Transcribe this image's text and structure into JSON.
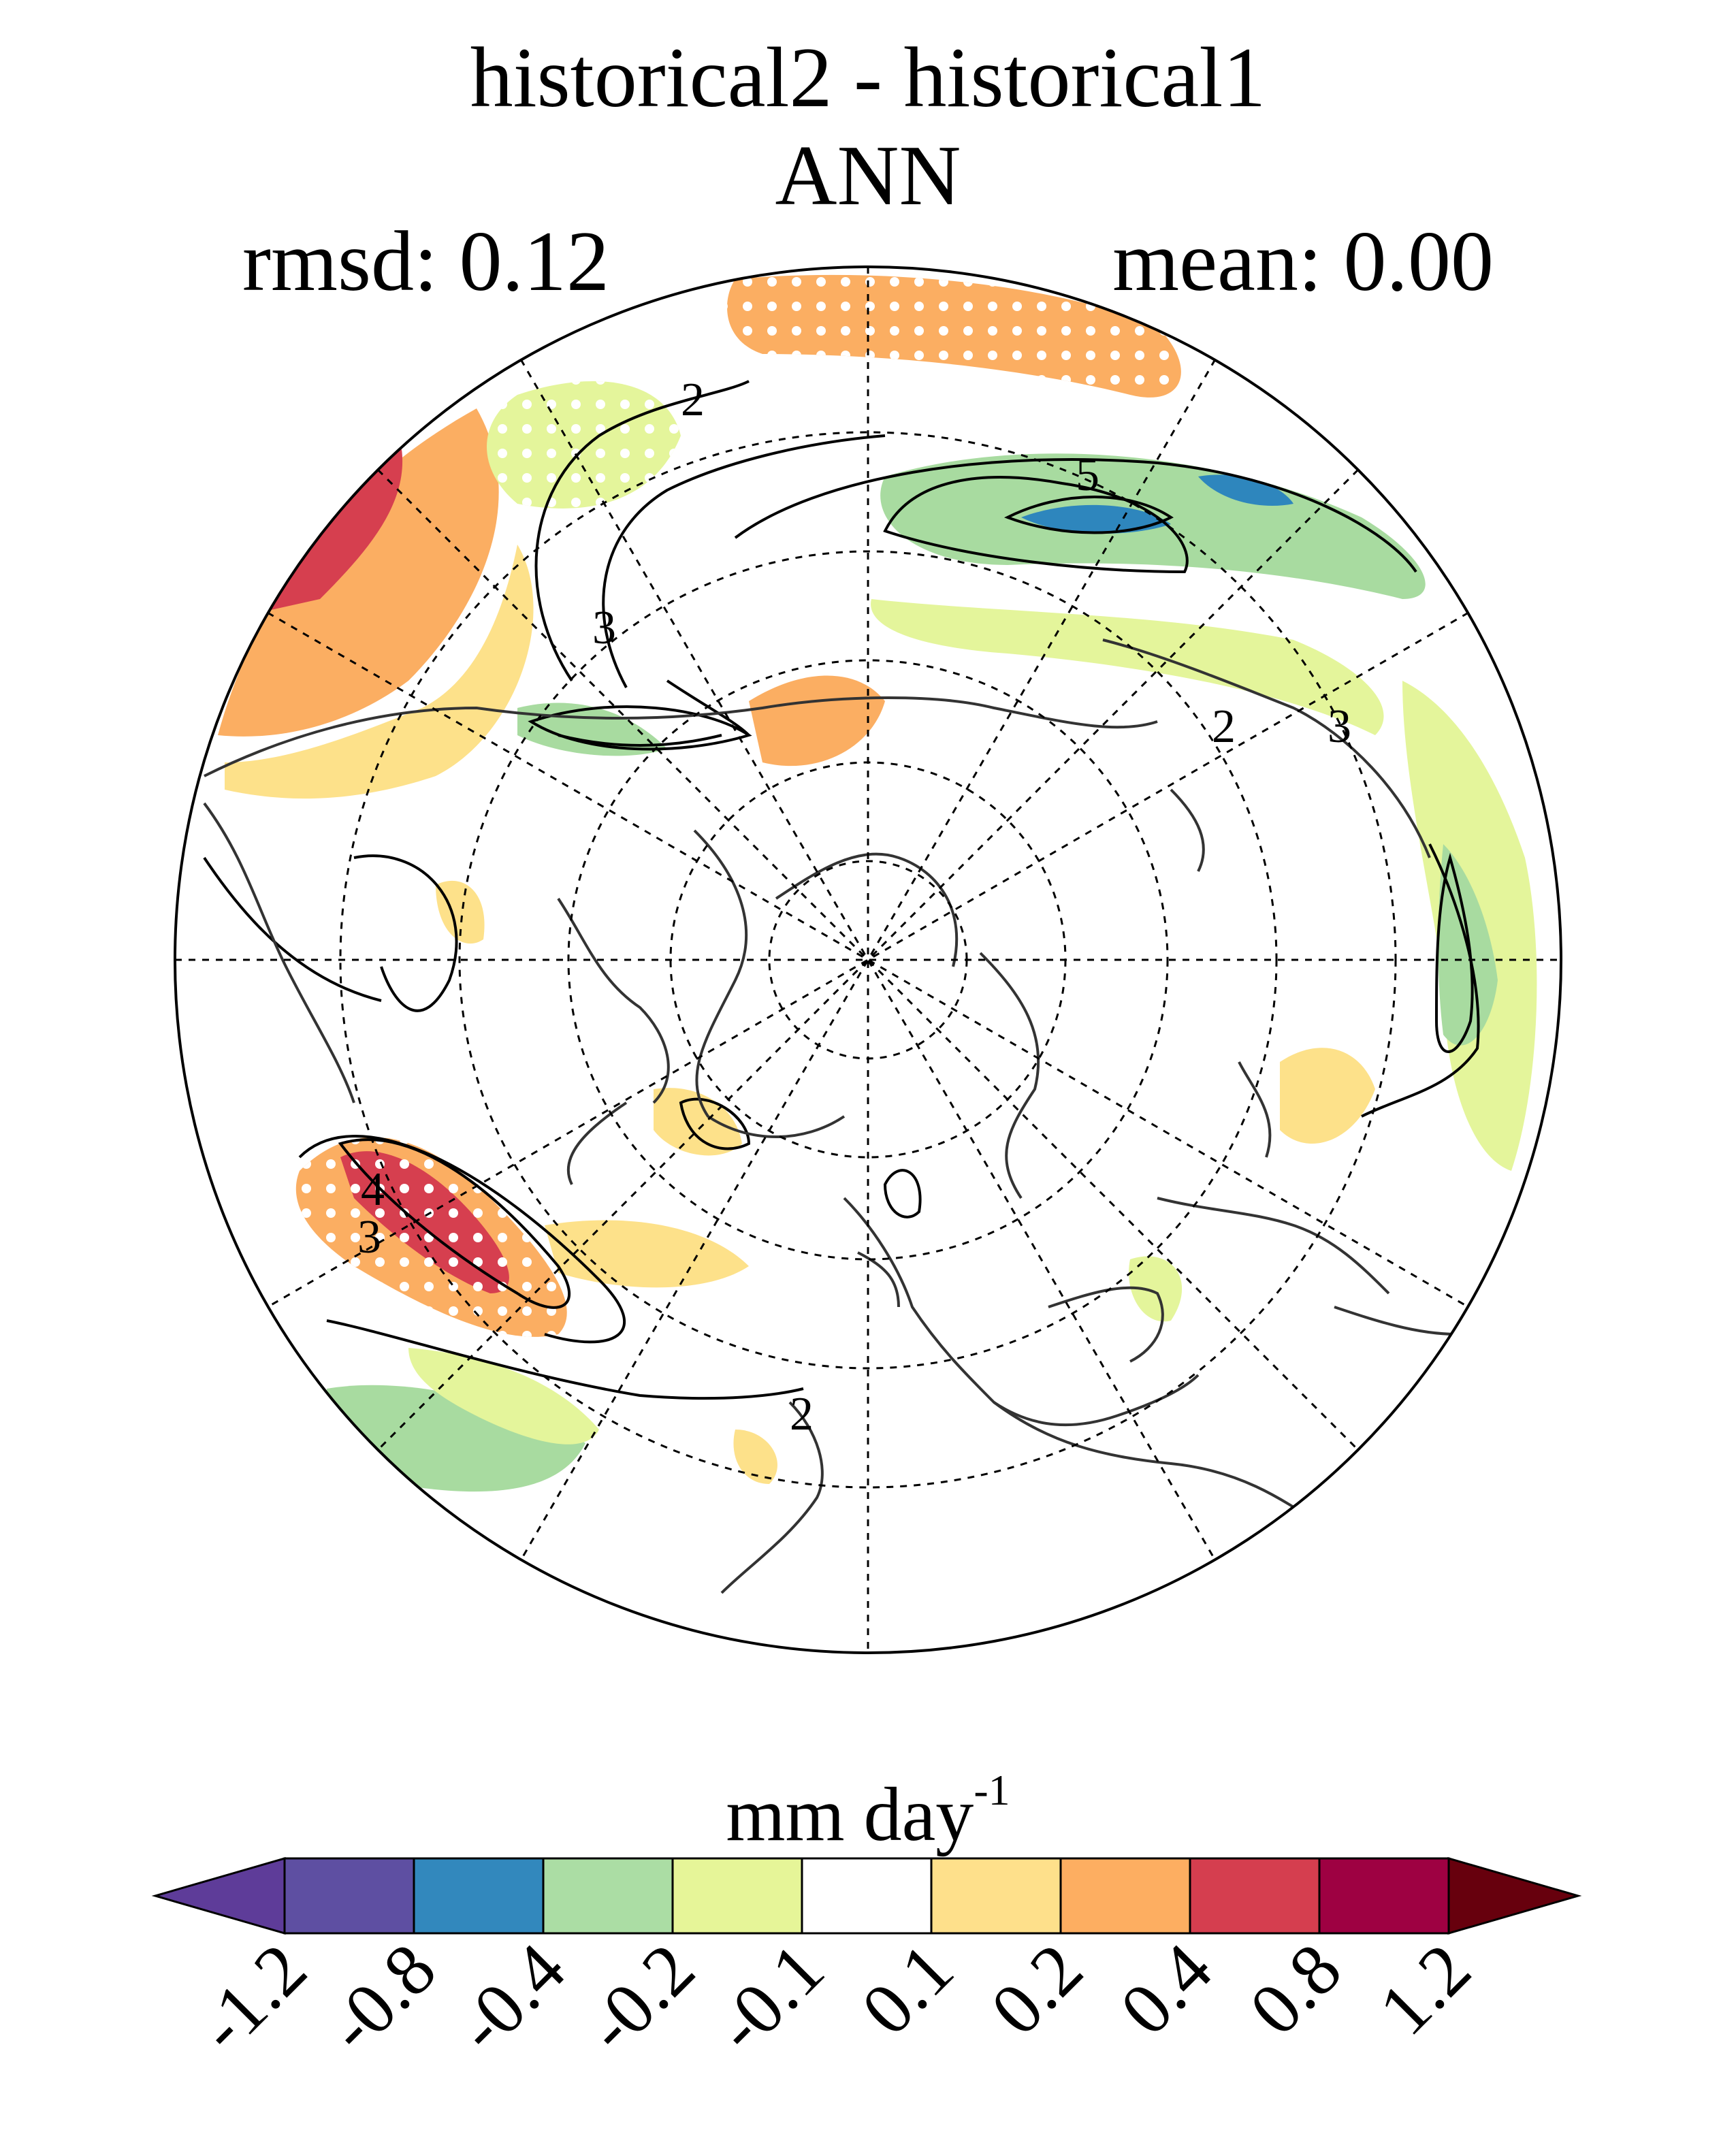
{
  "title": {
    "line1": "historical2 - historical1",
    "line2": "ANN"
  },
  "stats": {
    "rmsd_label": "rmsd: 0.12",
    "mean_label": "mean: 0.00"
  },
  "map": {
    "projection": "north-polar-stereographic",
    "contour_labels": [
      "2",
      "3",
      "5",
      "2",
      "3",
      "4",
      "3",
      "2"
    ],
    "palette": {
      "neg_green": "#a8dba0",
      "neg_lightgreen": "#e4f59b",
      "pos_yellow": "#fde18a",
      "pos_orange": "#fbae62",
      "pos_red": "#d63f4f",
      "blue": "#2e86bd"
    }
  },
  "colorbar": {
    "units_main": "mm day",
    "units_exp": "-1",
    "tick_labels": [
      "-1.2",
      "-0.8",
      "-0.4",
      "-0.2",
      "-0.1",
      "0.1",
      "0.2",
      "0.4",
      "0.8",
      "1.2"
    ],
    "colors": [
      "#5e3c99",
      "#5e4fa2",
      "#3288bd",
      "#abdda4",
      "#e6f598",
      "#ffffff",
      "#fee08b",
      "#fdae61",
      "#d53e4f",
      "#9e0142",
      "#67000d"
    ]
  }
}
